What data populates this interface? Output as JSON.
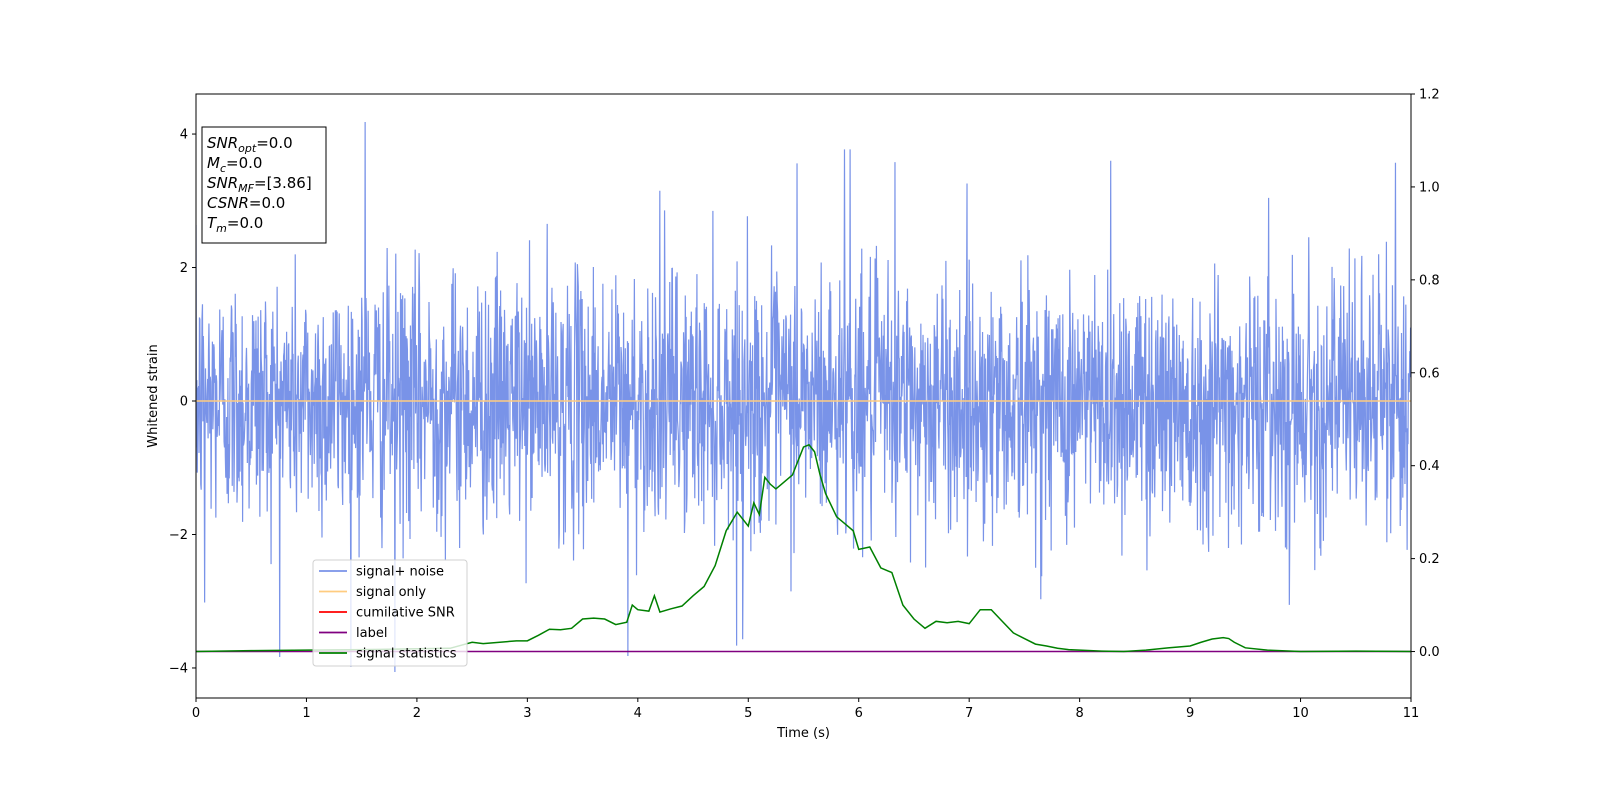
{
  "chart_data": {
    "type": "line",
    "xlabel": "Time (s)",
    "ylabel": "Whitened strain",
    "xlim": [
      0,
      11
    ],
    "ylim_left": [
      -4.45,
      4.6
    ],
    "ylim_right": [
      -0.1,
      1.2
    ],
    "x_ticks": [
      0,
      1,
      2,
      3,
      4,
      5,
      6,
      7,
      8,
      9,
      10,
      11
    ],
    "y_ticks_left": [
      -4,
      -2,
      0,
      2,
      4
    ],
    "y_ticks_right": [
      0.0,
      0.2,
      0.4,
      0.6,
      0.8,
      1.0,
      1.2
    ],
    "grid": false,
    "legend_position": "lower-left",
    "series": [
      {
        "name": "signal+ noise",
        "axis": "left",
        "color": "#7993e8",
        "kind": "white-noise",
        "sample_rate_hz": 256,
        "std": 0.95,
        "peaks": [
          {
            "x": 1.53,
            "y": 4.18
          },
          {
            "x": 3.91,
            "y": -3.82
          },
          {
            "x": 3.92,
            "y": -0.52
          },
          {
            "x": 4.2,
            "y": 3.15
          },
          {
            "x": 4.95,
            "y": -3.57
          },
          {
            "x": 5.44,
            "y": 3.56
          },
          {
            "x": 5.87,
            "y": 3.77
          },
          {
            "x": 5.92,
            "y": 3.77
          },
          {
            "x": 1.8,
            "y": -4.06
          },
          {
            "x": 0.08,
            "y": -3.02
          },
          {
            "x": 10.86,
            "y": 3.57
          },
          {
            "x": 8.28,
            "y": 3.6
          },
          {
            "x": 6.33,
            "y": 3.58
          }
        ]
      },
      {
        "name": "signal only",
        "axis": "left",
        "color": "#ffcc80",
        "x": [
          0,
          11
        ],
        "y": [
          0,
          0
        ]
      },
      {
        "name": "cumilative SNR",
        "axis": "left",
        "color": "#ff0000",
        "x": [],
        "y": []
      },
      {
        "name": "label",
        "axis": "right",
        "color": "#800080",
        "x": [
          0,
          11
        ],
        "y": [
          0,
          0
        ]
      },
      {
        "name": "signal statistics",
        "axis": "right",
        "color": "#008000",
        "x": [
          0,
          0.5,
          1.0,
          1.5,
          2.0,
          2.3,
          2.5,
          2.6,
          2.9,
          3.0,
          3.1,
          3.2,
          3.3,
          3.4,
          3.5,
          3.6,
          3.7,
          3.8,
          3.9,
          3.95,
          4.0,
          4.1,
          4.15,
          4.2,
          4.3,
          4.4,
          4.5,
          4.6,
          4.7,
          4.8,
          4.9,
          5.0,
          5.05,
          5.1,
          5.15,
          5.2,
          5.25,
          5.3,
          5.4,
          5.5,
          5.55,
          5.6,
          5.65,
          5.7,
          5.8,
          5.9,
          5.95,
          6.0,
          6.1,
          6.2,
          6.3,
          6.4,
          6.5,
          6.6,
          6.7,
          6.8,
          6.9,
          7.0,
          7.1,
          7.2,
          7.3,
          7.4,
          7.5,
          7.6,
          7.7,
          7.8,
          7.9,
          8.0,
          8.2,
          8.4,
          8.6,
          8.8,
          9.0,
          9.1,
          9.2,
          9.3,
          9.35,
          9.4,
          9.5,
          9.7,
          10.0,
          10.5,
          11.0
        ],
        "y": [
          0.0,
          0.002,
          0.003,
          0.004,
          0.006,
          0.007,
          0.02,
          0.017,
          0.023,
          0.023,
          0.035,
          0.048,
          0.047,
          0.05,
          0.07,
          0.072,
          0.07,
          0.058,
          0.063,
          0.1,
          0.09,
          0.087,
          0.12,
          0.085,
          0.092,
          0.098,
          0.12,
          0.14,
          0.185,
          0.26,
          0.3,
          0.27,
          0.32,
          0.295,
          0.375,
          0.36,
          0.35,
          0.36,
          0.38,
          0.44,
          0.445,
          0.43,
          0.38,
          0.34,
          0.29,
          0.27,
          0.26,
          0.22,
          0.225,
          0.18,
          0.17,
          0.1,
          0.07,
          0.05,
          0.065,
          0.062,
          0.065,
          0.06,
          0.09,
          0.09,
          0.065,
          0.04,
          0.028,
          0.016,
          0.012,
          0.007,
          0.004,
          0.003,
          0.001,
          0.0,
          0.003,
          0.008,
          0.012,
          0.02,
          0.027,
          0.03,
          0.028,
          0.02,
          0.008,
          0.003,
          0.0,
          0.001,
          0.0
        ]
      }
    ],
    "annotation": {
      "lines": [
        {
          "base": "SNR",
          "sub": "opt",
          "value": "=0.0"
        },
        {
          "base": "M",
          "sub": "c",
          "value": "=0.0"
        },
        {
          "base": "SNR",
          "sub": "MF",
          "value": "=[3.86]"
        },
        {
          "base": "CSNR",
          "sub": "",
          "value": "=0.0"
        },
        {
          "base": "T",
          "sub": "m",
          "value": "=0.0"
        }
      ]
    }
  }
}
